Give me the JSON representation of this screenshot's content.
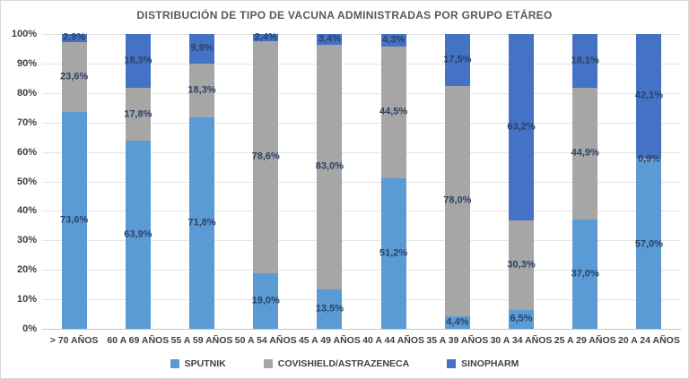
{
  "chart_data": {
    "type": "bar",
    "subtype": "stacked-percent",
    "title": "DISTRIBUCIÓN DE TIPO DE VACUNA ADMINISTRADAS POR GRUPO ETÁREO",
    "categories": [
      "> 70 AÑOS",
      "60 A 69 AÑOS",
      "55 A 59 AÑOS",
      "50 A 54 AÑOS",
      "45 A 49 AÑOS",
      "40 A 44 AÑOS",
      "35 A 39 AÑOS",
      "30 A 34 AÑOS",
      "25 A 29 AÑOS",
      "20 A 24 AÑOS"
    ],
    "series": [
      {
        "name": "SPUTNIK",
        "color": "#5B9BD5",
        "values": [
          73.6,
          63.9,
          71.8,
          19.0,
          13.5,
          51.2,
          4.4,
          6.5,
          37.0,
          57.0
        ],
        "labels": [
          "73,6%",
          "63,9%",
          "71,8%",
          "19,0%",
          "13,5%",
          "51,2%",
          "4,4%",
          "6,5%",
          "37,0%",
          "57,0%"
        ]
      },
      {
        "name": "COVISHIELD/ASTRAZENECA",
        "color": "#A6A6A6",
        "values": [
          23.6,
          17.8,
          18.3,
          78.6,
          83.0,
          44.5,
          78.0,
          30.3,
          44.9,
          0.9
        ],
        "labels": [
          "23,6%",
          "17,8%",
          "18,3%",
          "78,6%",
          "83,0%",
          "44,5%",
          "78,0%",
          "30,3%",
          "44,9%",
          "0,9%"
        ]
      },
      {
        "name": "SINOPHARM",
        "color": "#4472C4",
        "values": [
          2.9,
          18.3,
          9.9,
          2.4,
          3.4,
          4.3,
          17.5,
          63.2,
          18.1,
          42.1
        ],
        "labels": [
          "2,9%",
          "18,3%",
          "9,9%",
          "2,4%",
          "3,4%",
          "4,3%",
          "17,5%",
          "63,2%",
          "18,1%",
          "42,1%"
        ]
      }
    ],
    "y_axis": {
      "ticks": [
        "0%",
        "10%",
        "20%",
        "30%",
        "40%",
        "50%",
        "60%",
        "70%",
        "80%",
        "90%",
        "100%"
      ],
      "min": 0,
      "max": 100
    },
    "grid": true,
    "legend_position": "bottom"
  }
}
